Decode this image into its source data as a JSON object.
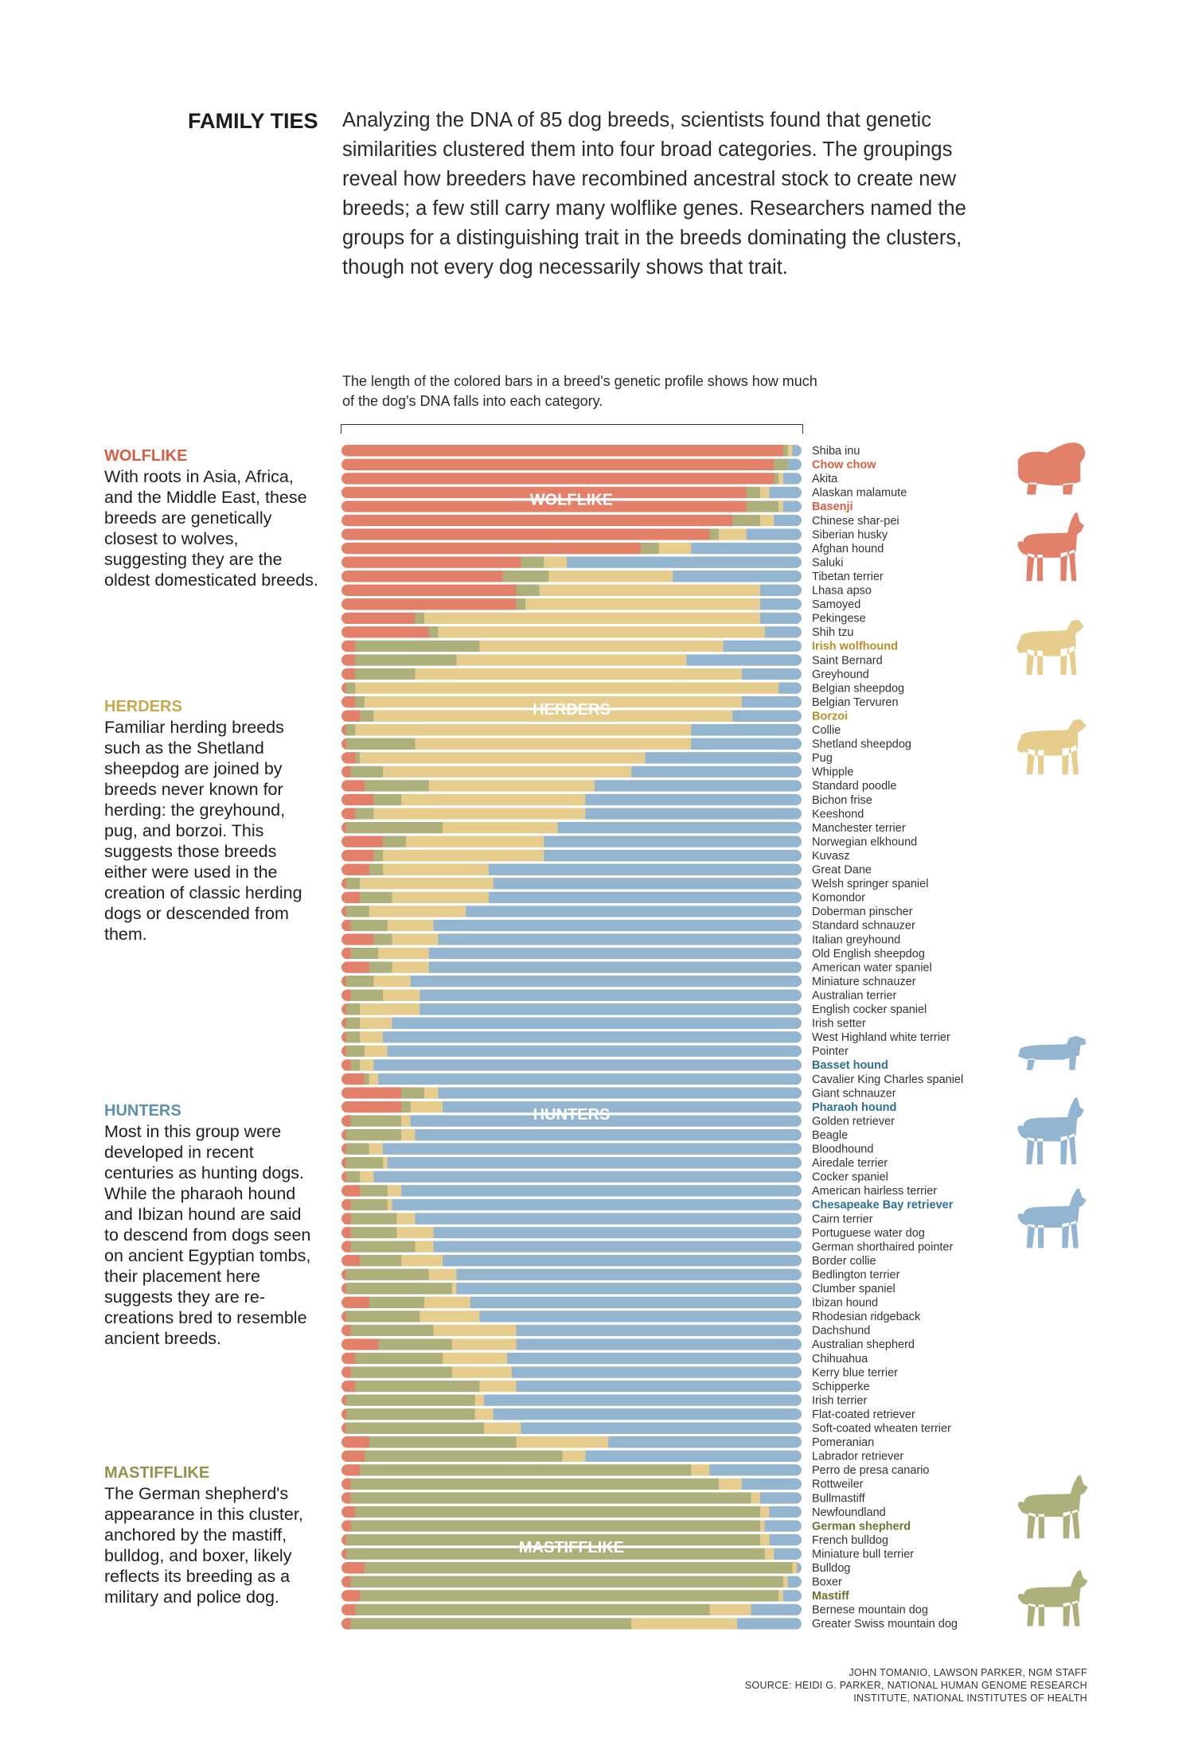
{
  "header": {
    "title": "FAMILY TIES",
    "intro": "Analyzing the DNA of 85 dog breeds, scientists found that genetic similarities clustered them into four broad categories. The groupings reveal how breeders have recombined ancestral stock to create new breeds; a few still carry many wolflike genes. Researchers named the groups for a distinguishing trait in the breeds dominating the clusters, though not every dog necessarily shows that trait."
  },
  "explanation": "The length of the colored bars in a breed's genetic profile shows how much of the dog's DNA falls into each category.",
  "colors": {
    "wolflike": "#e2806a",
    "mastifflike": "#aeb07c",
    "herders": "#e6cd8d",
    "hunters": "#93b5cf",
    "wolflike_label": "#d95f43",
    "herders_label": "#c9a84f",
    "hunters_label": "#5d8fb0",
    "mastifflike_label": "#8f9448",
    "herders_breed_label": "#b88e2a",
    "hunters_breed_label": "#2e6f94",
    "mastifflike_breed_label": "#6e7332"
  },
  "groups": [
    {
      "key": "wolflike",
      "title": "WOLFLIKE",
      "text": "With roots in Asia, Africa, and the Middle East, these breeds are genetically closest to wolves, suggesting they are the oldest domesticated breeds."
    },
    {
      "key": "herders",
      "title": "HERDERS",
      "text": "Familiar herding breeds such as the Shetland sheepdog are joined by breeds never known for herding: the greyhound, pug, and borzoi. This suggests those breeds either were used in the creation of classic herding dogs or descended from them."
    },
    {
      "key": "hunters",
      "title": "HUNTERS",
      "text": "Most in this group were developed in recent centuries as hunting dogs. While the pharaoh hound and Ibizan hound are said to descend from dogs seen on ancient Egyptian tombs, their placement here suggests they are re-creations bred to resemble ancient breeds."
    },
    {
      "key": "mastifflike",
      "title": "MASTIFFLIKE",
      "text": "The German shepherd's appearance in this cluster, anchored by the mastiff, bulldog, and boxer, likely reflects its breeding as a military and police dog."
    }
  ],
  "silhouettes": [
    {
      "name": "chow-chow-silhouette-icon",
      "group": "wolflike"
    },
    {
      "name": "basenji-silhouette-icon",
      "group": "wolflike"
    },
    {
      "name": "irish-wolfhound-silhouette-icon",
      "group": "herders"
    },
    {
      "name": "borzoi-silhouette-icon",
      "group": "herders"
    },
    {
      "name": "basset-hound-silhouette-icon",
      "group": "hunters"
    },
    {
      "name": "pharaoh-hound-silhouette-icon",
      "group": "hunters"
    },
    {
      "name": "chesapeake-bay-retriever-silhouette-icon",
      "group": "hunters"
    },
    {
      "name": "german-shepherd-silhouette-icon",
      "group": "mastifflike"
    },
    {
      "name": "mastiff-silhouette-icon",
      "group": "mastifflike"
    }
  ],
  "credits": {
    "line1": "JOHN TOMANIO, LAWSON PARKER, NGM STAFF",
    "line2": "SOURCE: HEIDI G. PARKER, NATIONAL HUMAN GENOME RESEARCH",
    "line3": "INSTITUTE, NATIONAL INSTITUTES OF HEALTH"
  },
  "chart_data": {
    "type": "bar",
    "orientation": "horizontal",
    "stacked": true,
    "normalized": true,
    "series_order": [
      "wolflike",
      "mastifflike",
      "herders",
      "hunters"
    ],
    "in_chart_labels": [
      {
        "group": "wolflike",
        "label": "WOLFLIKE",
        "after_breed": "Alaskan malamute"
      },
      {
        "group": "herders",
        "label": "HERDERS",
        "after_breed": "Belgian Tervuren"
      },
      {
        "group": "hunters",
        "label": "HUNTERS",
        "after_breed": "Pharaoh hound"
      },
      {
        "group": "mastifflike",
        "label": "MASTIFFLIKE",
        "after_breed": "French bulldog"
      }
    ],
    "breeds": [
      {
        "name": "Shiba inu",
        "values": [
          0.96,
          0.01,
          0.01,
          0.02
        ]
      },
      {
        "name": "Chow chow",
        "values": [
          0.94,
          0.03,
          0.0,
          0.03
        ],
        "highlight": "wolflike"
      },
      {
        "name": "Akita",
        "values": [
          0.94,
          0.01,
          0.01,
          0.04
        ]
      },
      {
        "name": "Alaskan malamute",
        "values": [
          0.88,
          0.03,
          0.02,
          0.07
        ]
      },
      {
        "name": "Basenji",
        "values": [
          0.88,
          0.07,
          0.01,
          0.04
        ],
        "highlight": "wolflike"
      },
      {
        "name": "Chinese shar-pei",
        "values": [
          0.85,
          0.06,
          0.03,
          0.06
        ]
      },
      {
        "name": "Siberian husky",
        "values": [
          0.8,
          0.02,
          0.06,
          0.12
        ]
      },
      {
        "name": "Afghan hound",
        "values": [
          0.65,
          0.04,
          0.07,
          0.24
        ]
      },
      {
        "name": "Saluki",
        "values": [
          0.39,
          0.05,
          0.05,
          0.51
        ]
      },
      {
        "name": "Tibetan terrier",
        "values": [
          0.35,
          0.1,
          0.27,
          0.28
        ]
      },
      {
        "name": "Lhasa apso",
        "values": [
          0.38,
          0.05,
          0.48,
          0.09
        ]
      },
      {
        "name": "Samoyed",
        "values": [
          0.38,
          0.02,
          0.51,
          0.09
        ]
      },
      {
        "name": "Pekingese",
        "values": [
          0.16,
          0.02,
          0.73,
          0.09
        ]
      },
      {
        "name": "Shih tzu",
        "values": [
          0.19,
          0.02,
          0.71,
          0.08
        ]
      },
      {
        "name": "Irish wolfhound",
        "values": [
          0.03,
          0.27,
          0.53,
          0.17
        ],
        "highlight": "herders"
      },
      {
        "name": "Saint Bernard",
        "values": [
          0.03,
          0.22,
          0.5,
          0.25
        ]
      },
      {
        "name": "Greyhound",
        "values": [
          0.03,
          0.13,
          0.71,
          0.13
        ]
      },
      {
        "name": "Belgian sheepdog",
        "values": [
          0.01,
          0.02,
          0.92,
          0.05
        ]
      },
      {
        "name": "Belgian Tervuren",
        "values": [
          0.03,
          0.02,
          0.82,
          0.13
        ]
      },
      {
        "name": "Borzoi",
        "values": [
          0.04,
          0.03,
          0.78,
          0.15
        ],
        "highlight": "herders"
      },
      {
        "name": "Collie",
        "values": [
          0.01,
          0.02,
          0.73,
          0.24
        ]
      },
      {
        "name": "Shetland sheepdog",
        "values": [
          0.01,
          0.15,
          0.6,
          0.24
        ]
      },
      {
        "name": "Pug",
        "values": [
          0.03,
          0.01,
          0.62,
          0.34
        ]
      },
      {
        "name": "Whipple",
        "values": [
          0.02,
          0.07,
          0.54,
          0.37
        ]
      },
      {
        "name": "Standard poodle",
        "values": [
          0.05,
          0.14,
          0.36,
          0.45
        ]
      },
      {
        "name": "Bichon frise",
        "values": [
          0.07,
          0.06,
          0.4,
          0.47
        ]
      },
      {
        "name": "Keeshond",
        "values": [
          0.03,
          0.04,
          0.46,
          0.47
        ]
      },
      {
        "name": "Manchester terrier",
        "values": [
          0.01,
          0.21,
          0.25,
          0.53
        ]
      },
      {
        "name": "Norwegian elkhound",
        "values": [
          0.09,
          0.05,
          0.3,
          0.56
        ]
      },
      {
        "name": "Kuvasz",
        "values": [
          0.07,
          0.02,
          0.35,
          0.56
        ]
      },
      {
        "name": "Great Dane",
        "values": [
          0.06,
          0.03,
          0.23,
          0.68
        ]
      },
      {
        "name": "Welsh springer spaniel",
        "values": [
          0.01,
          0.03,
          0.29,
          0.67
        ]
      },
      {
        "name": "Komondor",
        "values": [
          0.04,
          0.07,
          0.21,
          0.68
        ]
      },
      {
        "name": "Doberman pinscher",
        "values": [
          0.01,
          0.05,
          0.21,
          0.73
        ]
      },
      {
        "name": "Standard schnauzer",
        "values": [
          0.02,
          0.08,
          0.1,
          0.8
        ]
      },
      {
        "name": "Italian greyhound",
        "values": [
          0.07,
          0.04,
          0.1,
          0.79
        ]
      },
      {
        "name": "Old English sheepdog",
        "values": [
          0.02,
          0.06,
          0.11,
          0.81
        ]
      },
      {
        "name": "American water spaniel",
        "values": [
          0.06,
          0.05,
          0.08,
          0.81
        ]
      },
      {
        "name": "Miniature schnauzer",
        "values": [
          0.01,
          0.06,
          0.08,
          0.85
        ]
      },
      {
        "name": "Australian terrier",
        "values": [
          0.02,
          0.07,
          0.08,
          0.83
        ]
      },
      {
        "name": "English cocker spaniel",
        "values": [
          0.01,
          0.03,
          0.13,
          0.83
        ]
      },
      {
        "name": "Irish setter",
        "values": [
          0.01,
          0.03,
          0.07,
          0.89
        ]
      },
      {
        "name": "West Highland white terrier",
        "values": [
          0.01,
          0.03,
          0.05,
          0.91
        ]
      },
      {
        "name": "Pointer",
        "values": [
          0.01,
          0.04,
          0.05,
          0.9
        ]
      },
      {
        "name": "Basset hound",
        "values": [
          0.02,
          0.02,
          0.03,
          0.93
        ],
        "highlight": "hunters"
      },
      {
        "name": "Cavalier King Charles spaniel",
        "values": [
          0.05,
          0.01,
          0.02,
          0.92
        ]
      },
      {
        "name": "Giant schnauzer",
        "values": [
          0.13,
          0.05,
          0.03,
          0.79
        ]
      },
      {
        "name": "Pharaoh hound",
        "values": [
          0.13,
          0.02,
          0.07,
          0.78
        ],
        "highlight": "hunters"
      },
      {
        "name": "Golden retriever",
        "values": [
          0.02,
          0.11,
          0.02,
          0.85
        ]
      },
      {
        "name": "Beagle",
        "values": [
          0.01,
          0.12,
          0.03,
          0.84
        ]
      },
      {
        "name": "Bloodhound",
        "values": [
          0.01,
          0.05,
          0.03,
          0.91
        ]
      },
      {
        "name": "Airedale terrier",
        "values": [
          0.01,
          0.08,
          0.01,
          0.9
        ]
      },
      {
        "name": "Cocker spaniel",
        "values": [
          0.01,
          0.03,
          0.03,
          0.93
        ]
      },
      {
        "name": "American hairless terrier",
        "values": [
          0.04,
          0.06,
          0.03,
          0.87
        ]
      },
      {
        "name": "Chesapeake Bay retriever",
        "values": [
          0.02,
          0.08,
          0.01,
          0.89
        ],
        "highlight": "hunters"
      },
      {
        "name": "Cairn terrier",
        "values": [
          0.02,
          0.1,
          0.04,
          0.84
        ]
      },
      {
        "name": "Portuguese water dog",
        "values": [
          0.02,
          0.1,
          0.08,
          0.8
        ]
      },
      {
        "name": "German shorthaired pointer",
        "values": [
          0.02,
          0.14,
          0.04,
          0.8
        ]
      },
      {
        "name": "Border collie",
        "values": [
          0.04,
          0.09,
          0.09,
          0.78
        ]
      },
      {
        "name": "Bedlington terrier",
        "values": [
          0.01,
          0.18,
          0.06,
          0.75
        ]
      },
      {
        "name": "Clumber spaniel",
        "values": [
          0.01,
          0.23,
          0.01,
          0.75
        ]
      },
      {
        "name": "Ibizan hound",
        "values": [
          0.06,
          0.12,
          0.1,
          0.72
        ]
      },
      {
        "name": "Rhodesian ridgeback",
        "values": [
          0.01,
          0.16,
          0.13,
          0.7
        ]
      },
      {
        "name": "Dachshund",
        "values": [
          0.02,
          0.18,
          0.18,
          0.62
        ]
      },
      {
        "name": "Australian shepherd",
        "values": [
          0.08,
          0.16,
          0.14,
          0.62
        ]
      },
      {
        "name": "Chihuahua",
        "values": [
          0.03,
          0.19,
          0.14,
          0.64
        ]
      },
      {
        "name": "Kerry blue terrier",
        "values": [
          0.02,
          0.22,
          0.13,
          0.63
        ]
      },
      {
        "name": "Schipperke",
        "values": [
          0.03,
          0.27,
          0.08,
          0.62
        ]
      },
      {
        "name": "Irish terrier",
        "values": [
          0.01,
          0.28,
          0.02,
          0.69
        ]
      },
      {
        "name": "Flat-coated retriever",
        "values": [
          0.01,
          0.28,
          0.04,
          0.67
        ]
      },
      {
        "name": "Soft-coated wheaten terrier",
        "values": [
          0.01,
          0.3,
          0.08,
          0.61
        ]
      },
      {
        "name": "Pomeranian",
        "values": [
          0.06,
          0.32,
          0.2,
          0.42
        ]
      },
      {
        "name": "Labrador retriever",
        "values": [
          0.05,
          0.43,
          0.05,
          0.47
        ]
      },
      {
        "name": "Perro de presa canario",
        "values": [
          0.04,
          0.72,
          0.04,
          0.2
        ]
      },
      {
        "name": "Rottweiler",
        "values": [
          0.02,
          0.8,
          0.05,
          0.13
        ]
      },
      {
        "name": "Bullmastiff",
        "values": [
          0.02,
          0.87,
          0.02,
          0.09
        ]
      },
      {
        "name": "Newfoundland",
        "values": [
          0.03,
          0.88,
          0.02,
          0.07
        ]
      },
      {
        "name": "German shepherd",
        "values": [
          0.02,
          0.89,
          0.01,
          0.08
        ],
        "highlight": "mastifflike"
      },
      {
        "name": "French bulldog",
        "values": [
          0.01,
          0.9,
          0.02,
          0.07
        ]
      },
      {
        "name": "Miniature bull terrier",
        "values": [
          0.01,
          0.91,
          0.02,
          0.06
        ]
      },
      {
        "name": "Bulldog",
        "values": [
          0.05,
          0.93,
          0.01,
          0.01
        ]
      },
      {
        "name": "Boxer",
        "values": [
          0.02,
          0.94,
          0.01,
          0.03
        ]
      },
      {
        "name": "Mastiff",
        "values": [
          0.04,
          0.91,
          0.01,
          0.04
        ],
        "highlight": "mastifflike"
      },
      {
        "name": "Bernese mountain dog",
        "values": [
          0.03,
          0.77,
          0.09,
          0.11
        ]
      },
      {
        "name": "Greater Swiss mountain dog",
        "values": [
          0.02,
          0.61,
          0.23,
          0.14
        ]
      }
    ]
  }
}
